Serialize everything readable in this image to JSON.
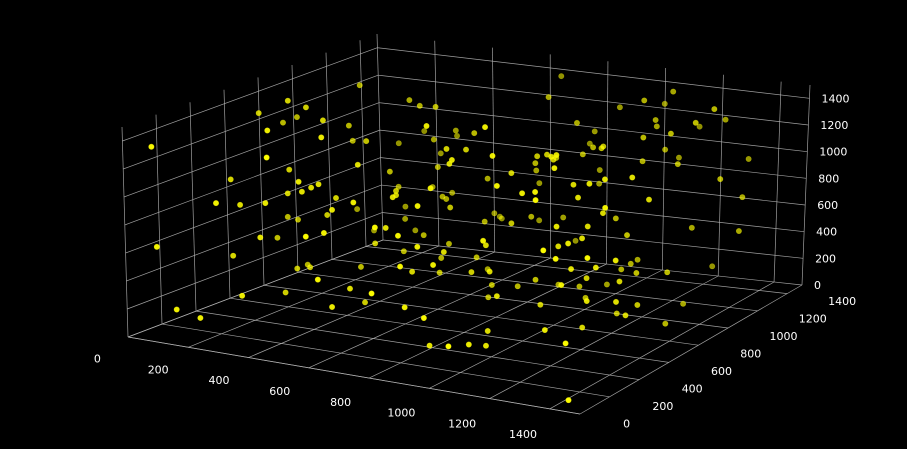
{
  "chart_data": {
    "type": "scatter",
    "projection": "3d",
    "title": "",
    "xlabel": "",
    "ylabel": "",
    "zlabel": "",
    "xlim": [
      0,
      1500
    ],
    "ylim": [
      0,
      1500
    ],
    "zlim": [
      0,
      1500
    ],
    "x_ticks": [
      0,
      200,
      400,
      600,
      800,
      1000,
      1200,
      1400
    ],
    "y_ticks": [
      0,
      200,
      400,
      600,
      800,
      1000,
      1200,
      1400
    ],
    "z_ticks": [
      0,
      200,
      400,
      600,
      800,
      1000,
      1200,
      1400
    ],
    "grid": true,
    "colors": {
      "background": "#000000",
      "pane": "#000000",
      "grid": "#b0b0b0",
      "tick_text": "#ffffff",
      "point": "#ffff00"
    },
    "point_count": 220,
    "points_seed": 20240607
  }
}
